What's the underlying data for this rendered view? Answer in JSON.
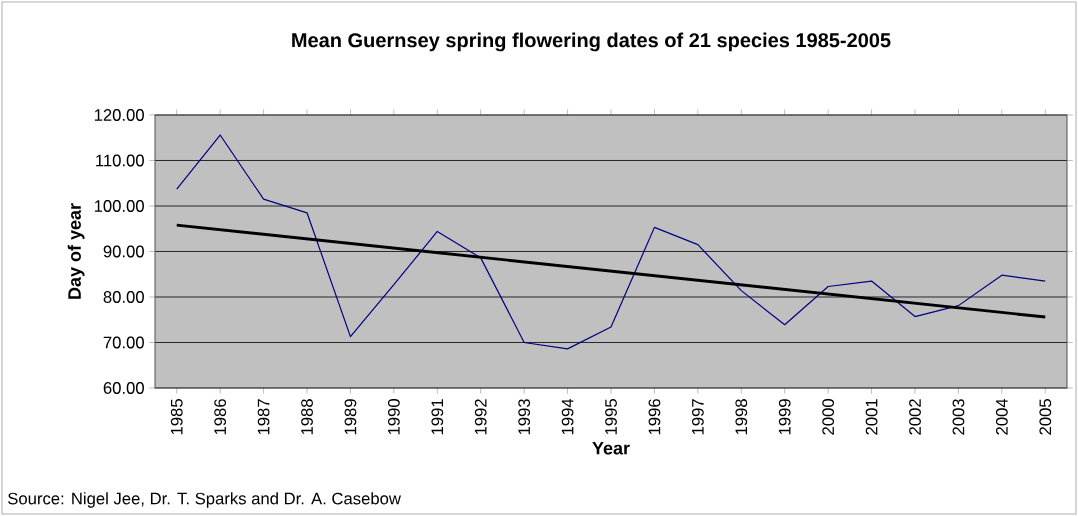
{
  "chart_data": {
    "type": "line",
    "title": "Mean Guernsey spring flowering dates of 21 species 1985-2005",
    "xlabel": "Year",
    "ylabel": "Day of year",
    "x": [
      1985,
      1986,
      1987,
      1988,
      1989,
      1990,
      1991,
      1992,
      1993,
      1994,
      1995,
      1996,
      1997,
      1998,
      1999,
      2000,
      2001,
      2002,
      2003,
      2004,
      2005
    ],
    "series": [
      {
        "color": "#000080",
        "values": [
          103.7,
          115.6,
          101.5,
          98.5,
          71.3,
          82.7,
          94.4,
          88.6,
          70.0,
          68.6,
          73.4,
          95.3,
          91.5,
          81.4,
          73.9,
          82.3,
          83.5,
          75.7,
          78.1,
          84.8,
          83.5
        ]
      },
      {
        "type": "line",
        "color": "#000000",
        "x": [
          1985,
          2005
        ],
        "values": [
          95.8,
          75.6
        ]
      }
    ],
    "xlim": [
      1984.5,
      2005.5
    ],
    "xticks": [
      1985,
      1986,
      1987,
      1988,
      1989,
      1990,
      1991,
      1992,
      1993,
      1994,
      1995,
      1996,
      1997,
      1998,
      1999,
      2000,
      2001,
      2002,
      2003,
      2004,
      2005
    ],
    "ylim": [
      60,
      120
    ],
    "yticks": [
      {
        "value": 60,
        "label": "60.00"
      },
      {
        "value": 70,
        "label": "70.00"
      },
      {
        "value": 80,
        "label": "80.00"
      },
      {
        "value": 90,
        "label": "90.00"
      },
      {
        "value": 100,
        "label": "100.00"
      },
      {
        "value": 110,
        "label": "110.00"
      },
      {
        "value": 120,
        "label": "120.00"
      }
    ],
    "grid": "y",
    "annotations": [
      "Source: Nigel Jee, Dr. T. Sparks and Dr. A. Casebow"
    ]
  }
}
